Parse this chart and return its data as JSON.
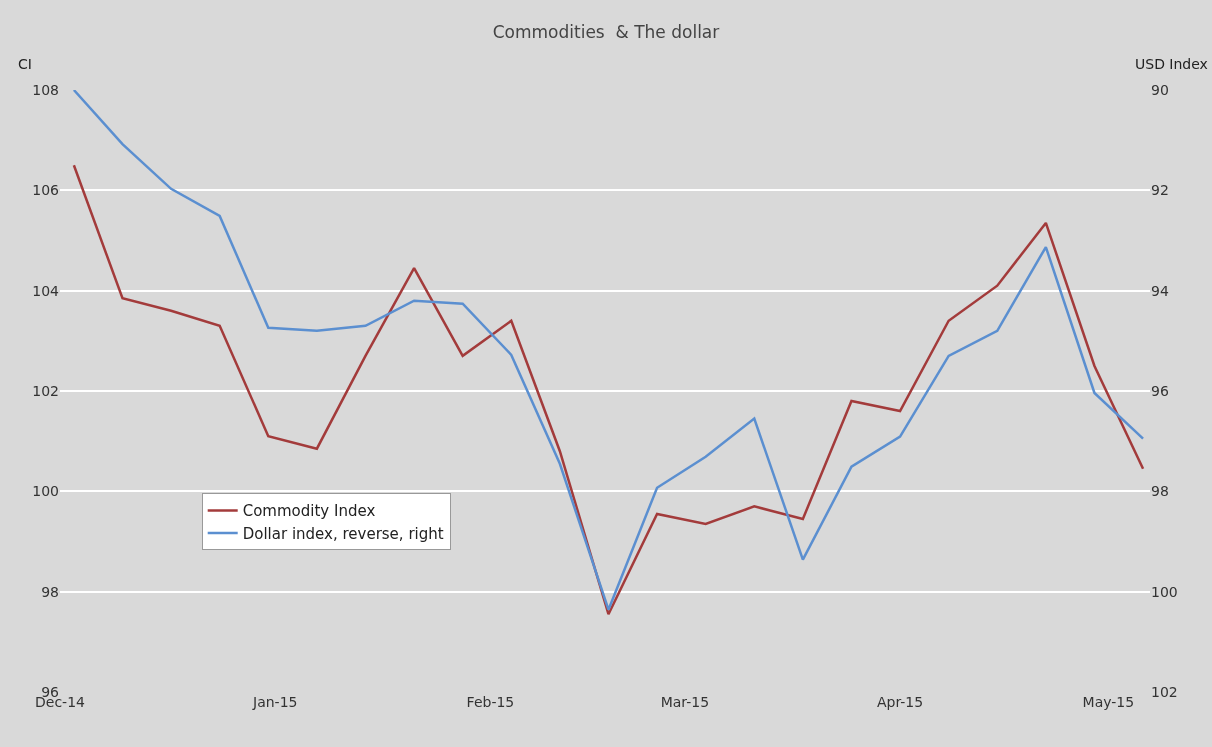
{
  "chart_data": {
    "type": "line",
    "title": "Commodities  & The dollar",
    "ylabel": "CI",
    "y2label": "USD Index",
    "x": [
      "2014-12-03",
      "2014-12-10",
      "2014-12-17",
      "2014-12-24",
      "2014-12-31",
      "2015-01-07",
      "2015-01-14",
      "2015-01-21",
      "2015-01-28",
      "2015-02-04",
      "2015-02-11",
      "2015-02-18",
      "2015-02-25",
      "2015-03-04",
      "2015-03-11",
      "2015-03-18",
      "2015-03-25",
      "2015-04-01",
      "2015-04-08",
      "2015-04-15",
      "2015-04-22",
      "2015-04-29",
      "2015-05-06"
    ],
    "series": [
      {
        "name": "Commodity Index",
        "color": "#a33b3b",
        "values": [
          106.5,
          103.85,
          103.6,
          103.3,
          101.1,
          100.85,
          102.7,
          104.45,
          102.7,
          103.4,
          100.8,
          97.55,
          99.55,
          99.35,
          99.7,
          99.45,
          101.8,
          101.6,
          103.4,
          104.1,
          105.35,
          102.5,
          100.45
        ]
      },
      {
        "name": "Dollar index, reverse, right",
        "color": "#5b8fd0",
        "axis": "y2",
        "values": [
          90.0,
          91.08,
          91.97,
          92.51,
          94.74,
          94.8,
          94.7,
          94.2,
          94.26,
          95.28,
          97.45,
          100.36,
          97.93,
          97.31,
          96.55,
          99.36,
          97.51,
          96.91,
          95.3,
          94.8,
          93.13,
          96.04,
          96.95
        ]
      }
    ],
    "xlim": [
      "2014-12-01",
      "2015-05-07"
    ],
    "xticks": [
      {
        "value": "2014-12-01",
        "label": "Dec-14"
      },
      {
        "value": "2015-01-01",
        "label": "Jan-15"
      },
      {
        "value": "2015-02-01",
        "label": "Feb-15"
      },
      {
        "value": "2015-03-01",
        "label": "Mar-15"
      },
      {
        "value": "2015-04-01",
        "label": "Apr-15"
      },
      {
        "value": "2015-05-01",
        "label": "May-15"
      }
    ],
    "ylim": [
      96,
      108
    ],
    "yticks": [
      96,
      98,
      100,
      102,
      104,
      106,
      108
    ],
    "y2lim": [
      102,
      90
    ],
    "y2ticks": [
      90,
      92,
      94,
      96,
      98,
      100,
      102
    ],
    "grid": "y",
    "legend": "bottom left",
    "line_style": "solid",
    "marker": "none"
  }
}
